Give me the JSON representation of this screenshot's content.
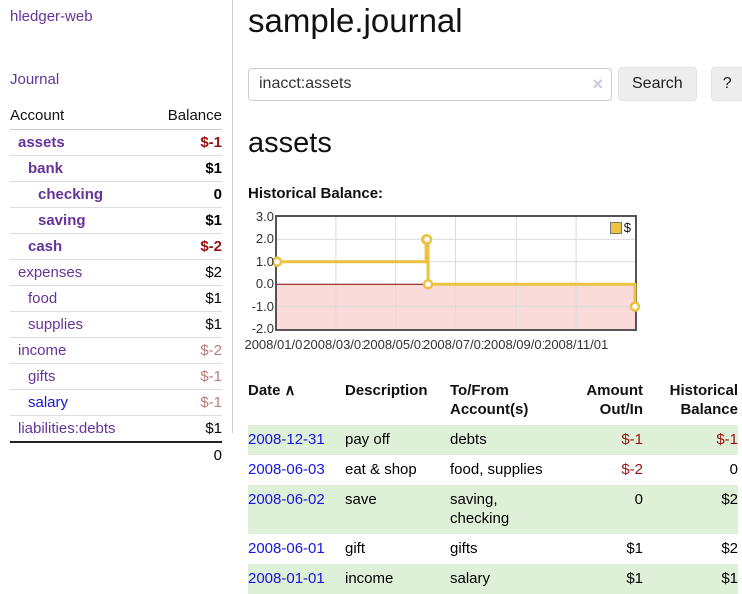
{
  "sidebar": {
    "app_title": "hledger-web",
    "journal_link": "Journal",
    "accounts_table": {
      "headers": {
        "account": "Account",
        "balance": "Balance"
      },
      "rows": [
        {
          "name": "assets",
          "depth": 1,
          "bold": true,
          "balance": "$-1",
          "balance_style": "neg-strong"
        },
        {
          "name": "bank",
          "depth": 2,
          "bold": true,
          "balance": "$1",
          "balance_style": "normal"
        },
        {
          "name": "checking",
          "depth": 3,
          "bold": true,
          "balance": "0",
          "balance_style": "normal"
        },
        {
          "name": "saving",
          "depth": 3,
          "bold": true,
          "balance": "$1",
          "balance_style": "normal"
        },
        {
          "name": "cash",
          "depth": 2,
          "bold": true,
          "balance": "$-2",
          "balance_style": "neg-strong"
        },
        {
          "name": "expenses",
          "depth": 1,
          "bold": false,
          "balance": "$2",
          "balance_style": "normal"
        },
        {
          "name": "food",
          "depth": 2,
          "bold": false,
          "balance": "$1",
          "balance_style": "normal"
        },
        {
          "name": "supplies",
          "depth": 2,
          "bold": false,
          "balance": "$1",
          "balance_style": "normal"
        },
        {
          "name": "income",
          "depth": 1,
          "bold": false,
          "balance": "$-2",
          "balance_style": "neg-soft"
        },
        {
          "name": "gifts",
          "depth": 2,
          "bold": false,
          "balance": "$-1",
          "balance_style": "neg-soft"
        },
        {
          "name": "salary",
          "depth": 2,
          "bold": false,
          "balance": "$-1",
          "balance_style": "neg-soft",
          "link_style": "blue"
        },
        {
          "name": "liabilities:debts",
          "depth": 1,
          "bold": false,
          "balance": "$1",
          "balance_style": "normal"
        }
      ],
      "total": "0"
    }
  },
  "header": {
    "title": "sample.journal"
  },
  "search": {
    "query": "inacct:assets",
    "clear_icon": "×",
    "search_button": "Search",
    "help_button": "?"
  },
  "account_page": {
    "heading": "assets",
    "chart_label": "Historical Balance:"
  },
  "chart_data": {
    "type": "line",
    "steps": true,
    "title": "Historical Balance",
    "series": [
      {
        "name": "$",
        "color": "#edc240",
        "points": [
          [
            "2008-01-01",
            1
          ],
          [
            "2008-06-01",
            2
          ],
          [
            "2008-06-02",
            2
          ],
          [
            "2008-06-03",
            0
          ],
          [
            "2008-12-31",
            -1
          ]
        ]
      }
    ],
    "x_range": [
      "2008-01-01",
      "2008-12-31"
    ],
    "ylim": [
      -2,
      3
    ],
    "yticks": [
      3.0,
      2.0,
      1.0,
      0.0,
      -1.0,
      -2.0
    ],
    "xticks": [
      "2008/01/01",
      "2008/03/01",
      "2008/05/01",
      "2008/07/01",
      "2008/09/01",
      "2008/11/01"
    ],
    "grid": true,
    "legend_position": "top-right",
    "negative_fill": "#fbdada",
    "zero_line_color": "#8b0000",
    "grid_color": "#dcdcdc",
    "border_color": "#545454"
  },
  "register_table": {
    "headers": {
      "date": "Date",
      "sort_icon": "∧",
      "description": "Description",
      "tofrom_lines": [
        "To/From",
        "Account(s)"
      ],
      "amount_lines": [
        "Amount",
        "Out/In"
      ],
      "historical_lines": [
        "Historical",
        "Balance"
      ]
    },
    "rows": [
      {
        "date": "2008-12-31",
        "description": "pay off",
        "accounts": "debts",
        "accounts_wrapped": false,
        "amount": "$-1",
        "amount_negative": true,
        "historical": "$-1",
        "historical_negative": true
      },
      {
        "date": "2008-06-03",
        "description": "eat & shop",
        "accounts": "food, supplies",
        "accounts_wrapped": false,
        "amount": "$-2",
        "amount_negative": true,
        "historical": "0",
        "historical_negative": false
      },
      {
        "date": "2008-06-02",
        "description": "save",
        "accounts": "saving, checking",
        "accounts_wrapped": true,
        "amount": "0",
        "amount_negative": false,
        "historical": "$2",
        "historical_negative": false
      },
      {
        "date": "2008-06-01",
        "description": "gift",
        "accounts": "gifts",
        "accounts_wrapped": false,
        "amount": "$1",
        "amount_negative": false,
        "historical": "$2",
        "historical_negative": false
      },
      {
        "date": "2008-01-01",
        "description": "income",
        "accounts": "salary",
        "accounts_wrapped": false,
        "amount": "$1",
        "amount_negative": false,
        "historical": "$1",
        "historical_negative": false
      }
    ]
  },
  "colors": {
    "link_purple": "#663399",
    "link_blue": "#1515dd",
    "negative_strong": "#991111",
    "negative_soft": "#bb7b7b",
    "row_stripe_green": "#dff0d8",
    "chart_series_yellow": "#edc240"
  }
}
